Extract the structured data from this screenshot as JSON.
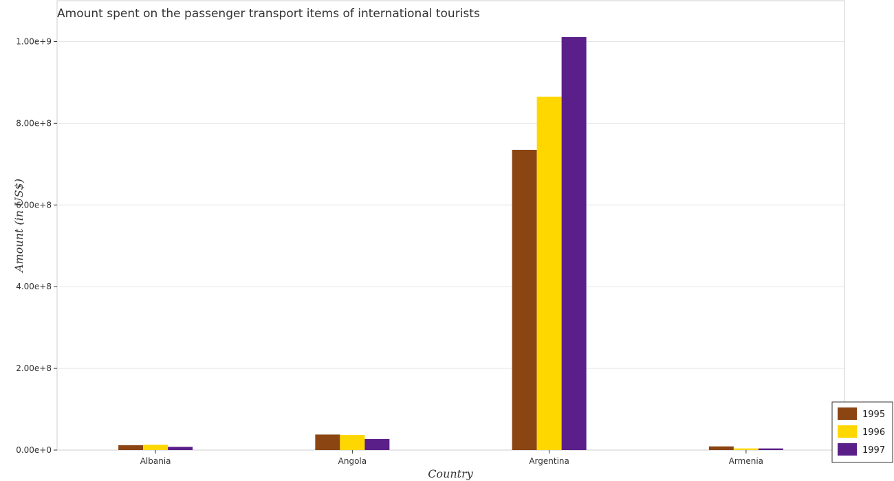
{
  "chart_data": {
    "type": "bar",
    "title": "Amount spent on the passenger transport items of international tourists",
    "xlabel": "Country",
    "ylabel": "Amount (in US$)",
    "categories": [
      "Albania",
      "Angola",
      "Argentina",
      "Armenia"
    ],
    "series": [
      {
        "name": "1995",
        "color": "#8B4513",
        "values": [
          12000000,
          38000000,
          735000000,
          9000000
        ]
      },
      {
        "name": "1996",
        "color": "#FFD700",
        "values": [
          13000000,
          37000000,
          865000000,
          4000000
        ]
      },
      {
        "name": "1997",
        "color": "#5B1F8A",
        "values": [
          8000000,
          27000000,
          1011000000,
          4000000
        ]
      }
    ],
    "ylim": [
      0,
      1100000000
    ],
    "yticks": [
      0,
      200000000,
      400000000,
      600000000,
      800000000,
      1000000000
    ],
    "ytick_labels": [
      "0.00e+0",
      "2.00e+8",
      "4.00e+8",
      "6.00e+8",
      "8.00e+8",
      "1.00e+9"
    ],
    "grid": true,
    "legend_position": "bottom-right"
  }
}
